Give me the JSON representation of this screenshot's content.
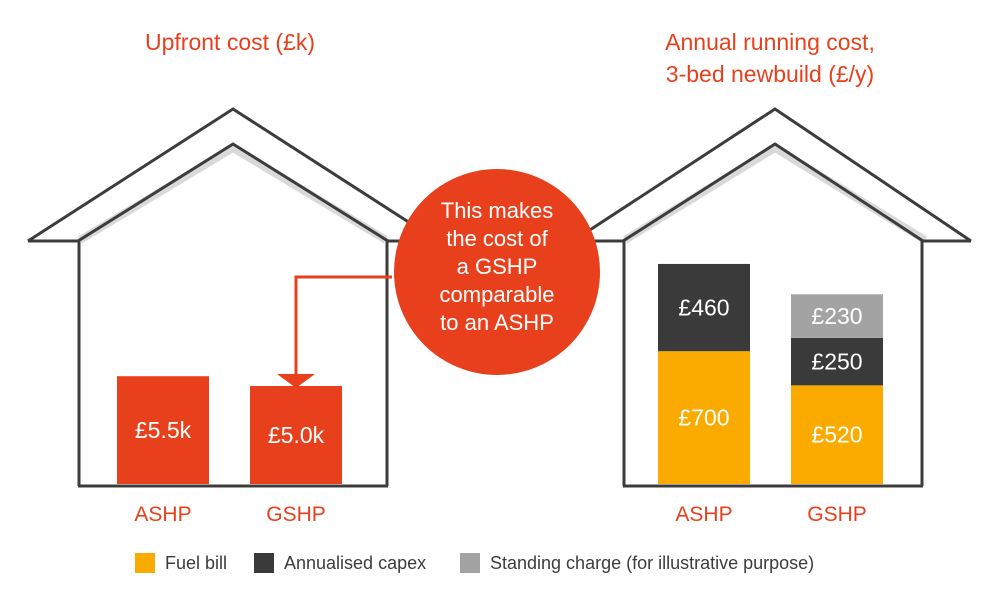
{
  "colors": {
    "accent": "#e8401c",
    "fuel": "#fbab00",
    "capex": "#3a3a3a",
    "standing": "#a3a3a3",
    "house_line": "#3c3c3c",
    "house_shadow": "#d9d9d9",
    "label_light": "#ffffff",
    "legend_text": "#3c3c3c"
  },
  "callout": {
    "lines": [
      "This makes",
      "the cost of",
      "a GSHP",
      "comparable",
      "to an ASHP"
    ]
  },
  "chart_data": [
    {
      "type": "bar",
      "title": "Upfront cost (£k)",
      "categories": [
        "ASHP",
        "GSHP"
      ],
      "values": [
        5.5,
        5.0
      ],
      "value_labels": [
        "£5.5k",
        "£5.0k"
      ],
      "ylim": [
        0,
        10
      ]
    },
    {
      "type": "bar",
      "stacked": true,
      "title_lines": [
        "Annual running cost,",
        "3-bed newbuild (£/y)"
      ],
      "categories": [
        "ASHP",
        "GSHP"
      ],
      "series": [
        {
          "name": "Fuel bill",
          "color_key": "fuel",
          "values": [
            700,
            520
          ],
          "labels": [
            "£700",
            "£520"
          ]
        },
        {
          "name": "Annualised capex",
          "color_key": "capex",
          "values": [
            460,
            250
          ],
          "labels": [
            "£460",
            "£250"
          ]
        },
        {
          "name": "Standing charge (for illustrative purpose)",
          "color_key": "standing",
          "values": [
            0,
            230
          ],
          "labels": [
            "",
            "£230"
          ]
        }
      ],
      "legend": "bottom"
    }
  ]
}
